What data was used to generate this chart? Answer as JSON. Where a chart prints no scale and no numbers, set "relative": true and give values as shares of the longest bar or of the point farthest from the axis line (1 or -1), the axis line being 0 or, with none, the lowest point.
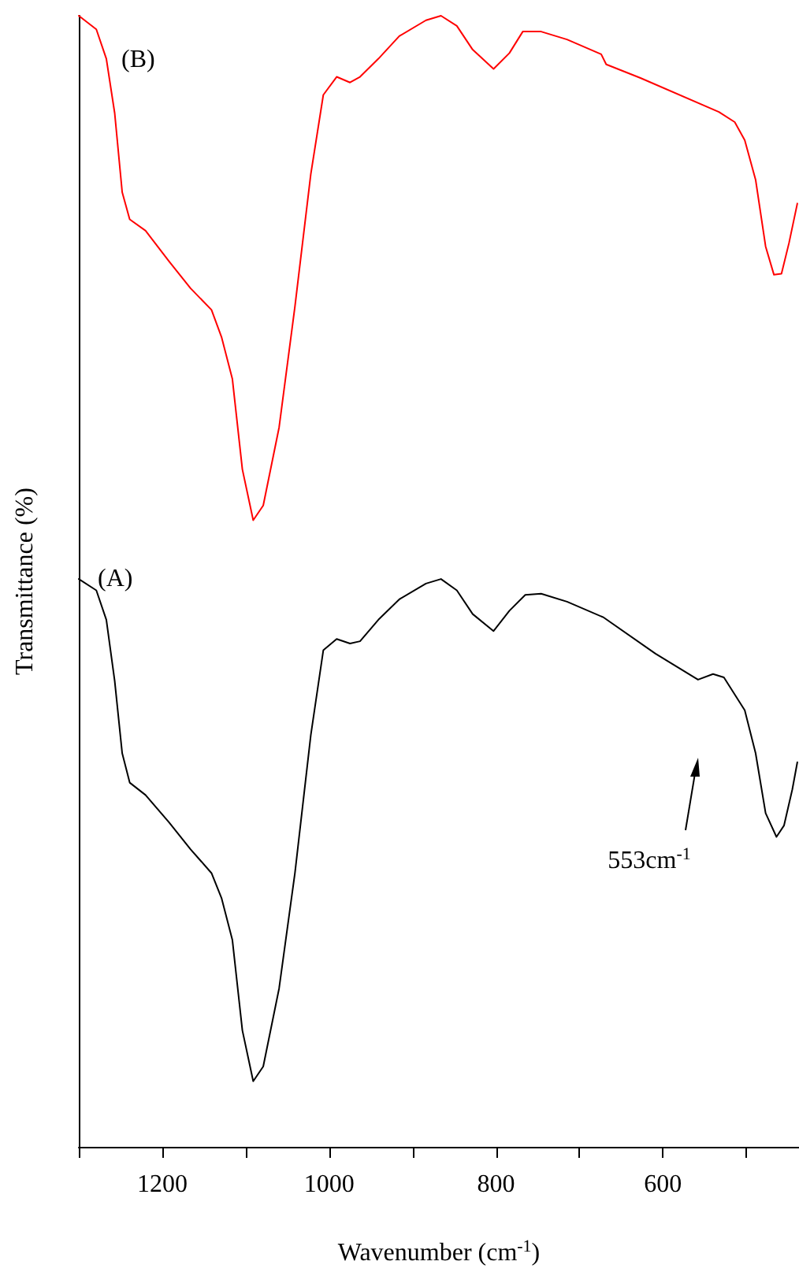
{
  "chart_data": {
    "type": "line",
    "relative": true,
    "xlabel": "Wavenumber (cm$^{-1}$)",
    "ylabel": "Transmittance (%)",
    "xlim": [
      1300,
      437
    ],
    "xticks": [
      {
        "value": 1300,
        "label": null
      },
      1200,
      {
        "value": 1100,
        "label": null
      },
      1000,
      {
        "value": 900,
        "label": null
      },
      800,
      {
        "value": 700,
        "label": null
      },
      600,
      {
        "value": 500,
        "label": null
      }
    ],
    "marker": "none",
    "line_style": "solid",
    "grid": false,
    "annotations": [
      "553cm$^{-1}$"
    ],
    "series": [
      {
        "name": "(B)",
        "color": "#ff0000",
        "x": [
          1300,
          1279,
          1267,
          1257,
          1248,
          1239,
          1220,
          1192,
          1166,
          1141,
          1129,
          1116,
          1104,
          1091,
          1079,
          1060,
          1041,
          1022,
          1007,
          991,
          975,
          963,
          941,
          916,
          884,
          866,
          847,
          828,
          803,
          784,
          768,
          746,
          715,
          674,
          668,
          627,
          533,
          514,
          502,
          489,
          477,
          467,
          458,
          449,
          439
        ],
        "values": [
          1.0,
          0.988,
          0.962,
          0.914,
          0.844,
          0.82,
          0.81,
          0.783,
          0.759,
          0.74,
          0.716,
          0.679,
          0.599,
          0.554,
          0.567,
          0.636,
          0.743,
          0.86,
          0.93,
          0.946,
          0.941,
          0.946,
          0.962,
          0.982,
          0.996,
          1.0,
          0.991,
          0.97,
          0.953,
          0.967,
          0.986,
          0.986,
          0.979,
          0.966,
          0.957,
          0.945,
          0.915,
          0.906,
          0.89,
          0.855,
          0.796,
          0.771,
          0.772,
          0.799,
          0.834
        ]
      },
      {
        "name": "(A)",
        "color": "#000000",
        "x": [
          1300,
          1279,
          1267,
          1257,
          1248,
          1239,
          1220,
          1192,
          1166,
          1141,
          1129,
          1116,
          1104,
          1091,
          1079,
          1060,
          1041,
          1022,
          1007,
          991,
          975,
          963,
          941,
          916,
          884,
          866,
          847,
          828,
          803,
          784,
          765,
          746,
          715,
          671,
          609,
          558,
          540,
          527,
          502,
          489,
          477,
          464,
          455,
          445,
          439
        ],
        "values": [
          0.502,
          0.492,
          0.466,
          0.412,
          0.348,
          0.322,
          0.311,
          0.287,
          0.263,
          0.242,
          0.22,
          0.183,
          0.103,
          0.058,
          0.071,
          0.14,
          0.242,
          0.364,
          0.439,
          0.449,
          0.445,
          0.447,
          0.466,
          0.484,
          0.498,
          0.502,
          0.492,
          0.471,
          0.456,
          0.474,
          0.488,
          0.489,
          0.482,
          0.468,
          0.436,
          0.413,
          0.418,
          0.415,
          0.386,
          0.348,
          0.295,
          0.274,
          0.284,
          0.316,
          0.34
        ]
      }
    ]
  }
}
